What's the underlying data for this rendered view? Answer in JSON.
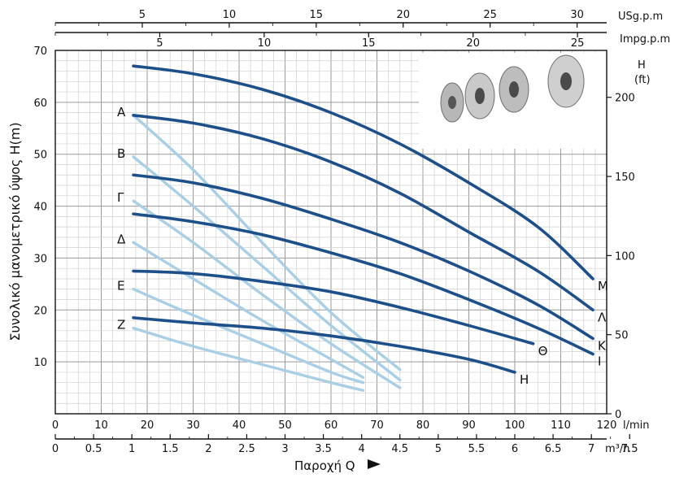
{
  "chart_data": {
    "type": "line",
    "xlabel": "Παροχή Q",
    "ylabel": "Συνολικό μανομετρικό ύψος H(m)",
    "xlim": [
      0,
      120
    ],
    "ylim": [
      0,
      70
    ],
    "grid": true,
    "x_unit_primary": "l/min",
    "x_unit_secondary": "m³/h",
    "y_unit_right_title": "H",
    "y_unit_right_sub": "(ft)",
    "top_axis1_unit": "USg.p.m",
    "top_axis2_unit": "Impg.p.m",
    "x_ticks_lmin": [
      "0",
      "10",
      "20",
      "30",
      "40",
      "50",
      "60",
      "70",
      "80",
      "90",
      "100",
      "110",
      "120"
    ],
    "x_ticks_m3h": [
      "0",
      "0.5",
      "1",
      "1.5",
      "2",
      "2.5",
      "3",
      "3.5",
      "4",
      "4.5",
      "5",
      "5.5",
      "6",
      "6.5",
      "7",
      "7.5"
    ],
    "y_ticks_m": [
      "10",
      "20",
      "30",
      "40",
      "50",
      "60",
      "70"
    ],
    "y_ticks_ft": [
      "0",
      "50",
      "100",
      "150",
      "200"
    ],
    "top_ticks_usgpm": [
      "5",
      "10",
      "15",
      "20",
      "25",
      "30"
    ],
    "top_ticks_impgpm": [
      "5",
      "10",
      "15",
      "20",
      "25"
    ],
    "series": [
      {
        "name": "A",
        "color": "#a9cfe6",
        "x": [
          17,
          30,
          45,
          60,
          75
        ],
        "y": [
          57.5,
          47,
          33,
          19.5,
          8.5
        ]
      },
      {
        "name": "B",
        "color": "#a9cfe6",
        "x": [
          17,
          30,
          45,
          60,
          75
        ],
        "y": [
          49.5,
          40,
          28.5,
          17,
          6.5
        ]
      },
      {
        "name": "Γ",
        "color": "#a9cfe6",
        "x": [
          17,
          30,
          45,
          60,
          75
        ],
        "y": [
          41,
          33,
          23,
          13.5,
          5
        ]
      },
      {
        "name": "Δ",
        "color": "#a9cfe6",
        "x": [
          17,
          30,
          45,
          60,
          67
        ],
        "y": [
          33,
          26,
          18,
          10.5,
          7
        ]
      },
      {
        "name": "E",
        "color": "#a9cfe6",
        "x": [
          17,
          30,
          45,
          60,
          67
        ],
        "y": [
          24,
          19,
          13.5,
          8,
          6
        ]
      },
      {
        "name": "Z",
        "color": "#a9cfe6",
        "x": [
          17,
          30,
          45,
          60,
          67
        ],
        "y": [
          16.5,
          13,
          9.5,
          6,
          4.5
        ]
      },
      {
        "name": "H",
        "color": "#1d4f8a",
        "x": [
          17,
          30,
          45,
          60,
          75,
          90,
          100
        ],
        "y": [
          18.5,
          17.5,
          16.5,
          15,
          13,
          10.5,
          8
        ]
      },
      {
        "name": "Θ",
        "color": "#1d4f8a",
        "x": [
          17,
          30,
          45,
          60,
          75,
          90,
          104
        ],
        "y": [
          27.5,
          27,
          25.5,
          23.5,
          20.5,
          17,
          13.5
        ]
      },
      {
        "name": "I",
        "color": "#1d4f8a",
        "x": [
          17,
          30,
          45,
          60,
          75,
          90,
          105,
          117
        ],
        "y": [
          38.5,
          37,
          34.5,
          31,
          27,
          22,
          16.5,
          11.5
        ]
      },
      {
        "name": "K",
        "color": "#1d4f8a",
        "x": [
          17,
          30,
          45,
          60,
          75,
          90,
          105,
          117
        ],
        "y": [
          46,
          44.5,
          41.5,
          37.5,
          33,
          27.5,
          21,
          14.5
        ]
      },
      {
        "name": "Λ",
        "color": "#1d4f8a",
        "x": [
          17,
          30,
          45,
          60,
          75,
          90,
          105,
          117
        ],
        "y": [
          57.5,
          56,
          53,
          48.5,
          42.5,
          35,
          27.5,
          20
        ]
      },
      {
        "name": "M",
        "color": "#1d4f8a",
        "x": [
          17,
          30,
          45,
          60,
          75,
          90,
          105,
          117
        ],
        "y": [
          67,
          65.5,
          62.5,
          58,
          52,
          44.5,
          36,
          26
        ]
      }
    ]
  }
}
